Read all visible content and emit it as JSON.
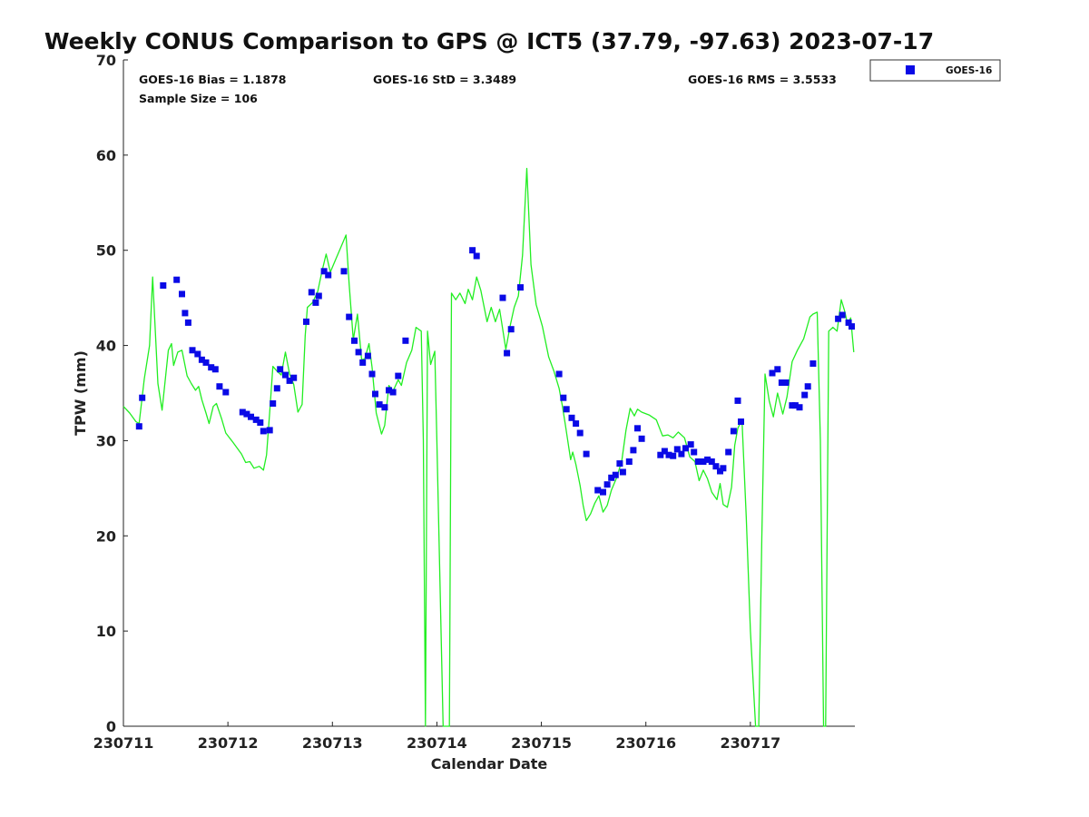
{
  "chart_data": {
    "type": "scatter",
    "title": "Weekly CONUS Comparison to GPS @ ICT5 (37.79, -97.63) 2023-07-17",
    "xlabel": "Calendar Date",
    "ylabel": "TPW (mm)",
    "xlim": [
      230711,
      230718
    ],
    "ylim": [
      0,
      70
    ],
    "x_tick_labels": [
      "230711",
      "230712",
      "230713",
      "230714",
      "230715",
      "230716",
      "230717"
    ],
    "y_tick_labels": [
      "0",
      "10",
      "20",
      "30",
      "40",
      "50",
      "60",
      "70"
    ],
    "grid": false,
    "legend_position": "top-right",
    "stats": {
      "bias": "GOES-16 Bias = 1.1878",
      "std": "GOES-16 StD = 3.3489",
      "rms": "GOES-16 RMS = 3.5533",
      "sample": "Sample Size = 106"
    },
    "colors": {
      "goes": "#0a0ae6",
      "gps": "#22ee22"
    },
    "series": [
      {
        "name": "GOES-16",
        "style": "square-markers",
        "color": "#0a0ae6",
        "points": [
          [
            230711.15,
            31.5
          ],
          [
            230711.18,
            34.5
          ],
          [
            230711.38,
            46.3
          ],
          [
            230711.51,
            46.9
          ],
          [
            230711.56,
            45.4
          ],
          [
            230711.59,
            43.4
          ],
          [
            230711.62,
            42.4
          ],
          [
            230711.66,
            39.5
          ],
          [
            230711.71,
            39.1
          ],
          [
            230711.75,
            38.5
          ],
          [
            230711.79,
            38.2
          ],
          [
            230711.84,
            37.7
          ],
          [
            230711.88,
            37.5
          ],
          [
            230711.92,
            35.7
          ],
          [
            230711.98,
            35.1
          ],
          [
            230712.14,
            33.0
          ],
          [
            230712.18,
            32.8
          ],
          [
            230712.22,
            32.5
          ],
          [
            230712.27,
            32.2
          ],
          [
            230712.31,
            31.9
          ],
          [
            230712.34,
            31.0
          ],
          [
            230712.4,
            31.1
          ],
          [
            230712.43,
            33.9
          ],
          [
            230712.47,
            35.5
          ],
          [
            230712.5,
            37.5
          ],
          [
            230712.55,
            36.9
          ],
          [
            230712.59,
            36.3
          ],
          [
            230712.63,
            36.6
          ],
          [
            230712.75,
            42.5
          ],
          [
            230712.8,
            45.6
          ],
          [
            230712.84,
            44.5
          ],
          [
            230712.87,
            45.2
          ],
          [
            230712.92,
            47.8
          ],
          [
            230712.96,
            47.4
          ],
          [
            230713.11,
            47.8
          ],
          [
            230713.16,
            43.0
          ],
          [
            230713.21,
            40.5
          ],
          [
            230713.25,
            39.3
          ],
          [
            230713.29,
            38.2
          ],
          [
            230713.34,
            38.9
          ],
          [
            230713.38,
            37.0
          ],
          [
            230713.41,
            34.9
          ],
          [
            230713.45,
            33.8
          ],
          [
            230713.5,
            33.5
          ],
          [
            230713.54,
            35.3
          ],
          [
            230713.58,
            35.1
          ],
          [
            230713.63,
            36.8
          ],
          [
            230713.7,
            40.5
          ],
          [
            230714.34,
            50.0
          ],
          [
            230714.38,
            49.4
          ],
          [
            230714.63,
            45.0
          ],
          [
            230714.67,
            39.2
          ],
          [
            230714.71,
            41.7
          ],
          [
            230714.8,
            46.1
          ],
          [
            230715.17,
            37.0
          ],
          [
            230715.21,
            34.5
          ],
          [
            230715.24,
            33.3
          ],
          [
            230715.29,
            32.4
          ],
          [
            230715.33,
            31.8
          ],
          [
            230715.37,
            30.8
          ],
          [
            230715.43,
            28.6
          ],
          [
            230715.54,
            24.8
          ],
          [
            230715.59,
            24.6
          ],
          [
            230715.63,
            25.4
          ],
          [
            230715.67,
            26.1
          ],
          [
            230715.71,
            26.4
          ],
          [
            230715.75,
            27.6
          ],
          [
            230715.78,
            26.7
          ],
          [
            230715.84,
            27.8
          ],
          [
            230715.88,
            29.0
          ],
          [
            230715.92,
            31.3
          ],
          [
            230715.96,
            30.2
          ],
          [
            230716.14,
            28.5
          ],
          [
            230716.18,
            28.9
          ],
          [
            230716.22,
            28.5
          ],
          [
            230716.26,
            28.4
          ],
          [
            230716.3,
            29.1
          ],
          [
            230716.34,
            28.6
          ],
          [
            230716.38,
            29.2
          ],
          [
            230716.43,
            29.6
          ],
          [
            230716.46,
            28.8
          ],
          [
            230716.5,
            27.8
          ],
          [
            230716.55,
            27.8
          ],
          [
            230716.59,
            28.0
          ],
          [
            230716.63,
            27.8
          ],
          [
            230716.67,
            27.3
          ],
          [
            230716.71,
            26.8
          ],
          [
            230716.74,
            27.1
          ],
          [
            230716.79,
            28.8
          ],
          [
            230716.84,
            31.0
          ],
          [
            230716.88,
            34.2
          ],
          [
            230716.91,
            32.0
          ],
          [
            230717.21,
            37.1
          ],
          [
            230717.26,
            37.5
          ],
          [
            230717.3,
            36.1
          ],
          [
            230717.34,
            36.1
          ],
          [
            230717.4,
            33.7
          ],
          [
            230717.43,
            33.7
          ],
          [
            230717.47,
            33.5
          ],
          [
            230717.52,
            34.8
          ],
          [
            230717.55,
            35.7
          ],
          [
            230717.6,
            38.1
          ],
          [
            230717.84,
            42.8
          ],
          [
            230717.88,
            43.2
          ],
          [
            230717.94,
            42.4
          ],
          [
            230717.97,
            42.0
          ]
        ]
      },
      {
        "name": "",
        "style": "line",
        "color": "#22ee22",
        "points": [
          [
            230711.0,
            33.6
          ],
          [
            230711.06,
            32.9
          ],
          [
            230711.12,
            32.0
          ],
          [
            230711.15,
            31.8
          ],
          [
            230711.2,
            36.5
          ],
          [
            230711.25,
            40.0
          ],
          [
            230711.28,
            47.2
          ],
          [
            230711.33,
            36.0
          ],
          [
            230711.37,
            33.2
          ],
          [
            230711.43,
            39.5
          ],
          [
            230711.46,
            40.2
          ],
          [
            230711.48,
            37.9
          ],
          [
            230711.52,
            39.3
          ],
          [
            230711.56,
            39.5
          ],
          [
            230711.61,
            36.8
          ],
          [
            230711.65,
            36.0
          ],
          [
            230711.69,
            35.3
          ],
          [
            230711.72,
            35.7
          ],
          [
            230711.75,
            34.3
          ],
          [
            230711.79,
            32.9
          ],
          [
            230711.82,
            31.8
          ],
          [
            230711.86,
            33.6
          ],
          [
            230711.89,
            33.9
          ],
          [
            230711.94,
            32.3
          ],
          [
            230711.98,
            30.8
          ],
          [
            230712.05,
            29.8
          ],
          [
            230712.13,
            28.6
          ],
          [
            230712.17,
            27.7
          ],
          [
            230712.21,
            27.8
          ],
          [
            230712.25,
            27.1
          ],
          [
            230712.3,
            27.3
          ],
          [
            230712.34,
            26.9
          ],
          [
            230712.37,
            28.5
          ],
          [
            230712.4,
            33.0
          ],
          [
            230712.43,
            37.8
          ],
          [
            230712.47,
            37.3
          ],
          [
            230712.51,
            36.9
          ],
          [
            230712.55,
            39.3
          ],
          [
            230712.59,
            37.0
          ],
          [
            230712.63,
            35.9
          ],
          [
            230712.67,
            33.0
          ],
          [
            230712.71,
            33.8
          ],
          [
            230712.74,
            41.0
          ],
          [
            230712.76,
            44.0
          ],
          [
            230712.81,
            44.5
          ],
          [
            230712.86,
            45.7
          ],
          [
            230712.9,
            47.8
          ],
          [
            230712.94,
            49.6
          ],
          [
            230712.98,
            47.7
          ],
          [
            230713.03,
            49.0
          ],
          [
            230713.08,
            50.3
          ],
          [
            230713.13,
            51.6
          ],
          [
            230713.16,
            46.5
          ],
          [
            230713.2,
            40.6
          ],
          [
            230713.24,
            43.3
          ],
          [
            230713.28,
            38.5
          ],
          [
            230713.31,
            38.6
          ],
          [
            230713.35,
            40.2
          ],
          [
            230713.38,
            37.7
          ],
          [
            230713.42,
            32.9
          ],
          [
            230713.47,
            30.7
          ],
          [
            230713.5,
            31.6
          ],
          [
            230713.54,
            35.8
          ],
          [
            230713.58,
            35.2
          ],
          [
            230713.63,
            36.4
          ],
          [
            230713.66,
            35.8
          ],
          [
            230713.71,
            38.2
          ],
          [
            230713.76,
            39.5
          ],
          [
            230713.8,
            41.9
          ],
          [
            230713.85,
            41.5
          ],
          [
            230713.87,
            30.0
          ],
          [
            230713.89,
            0
          ],
          [
            230713.91,
            41.5
          ],
          [
            230713.94,
            38.0
          ],
          [
            230713.98,
            39.4
          ],
          [
            230714.0,
            30.0
          ],
          [
            230714.06,
            0
          ],
          [
            230714.12,
            0
          ],
          [
            230714.14,
            45.5
          ],
          [
            230714.18,
            44.8
          ],
          [
            230714.22,
            45.5
          ],
          [
            230714.27,
            44.4
          ],
          [
            230714.3,
            45.9
          ],
          [
            230714.34,
            44.8
          ],
          [
            230714.38,
            47.2
          ],
          [
            230714.42,
            45.8
          ],
          [
            230714.48,
            42.5
          ],
          [
            230714.52,
            44.0
          ],
          [
            230714.56,
            42.5
          ],
          [
            230714.6,
            43.8
          ],
          [
            230714.66,
            39.6
          ],
          [
            230714.7,
            42.0
          ],
          [
            230714.74,
            44.0
          ],
          [
            230714.78,
            45.2
          ],
          [
            230714.82,
            49.5
          ],
          [
            230714.86,
            58.6
          ],
          [
            230714.9,
            48.5
          ],
          [
            230714.95,
            44.3
          ],
          [
            230715.01,
            42.0
          ],
          [
            230715.07,
            38.8
          ],
          [
            230715.12,
            37.3
          ],
          [
            230715.17,
            35.5
          ],
          [
            230715.2,
            33.7
          ],
          [
            230715.23,
            31.6
          ],
          [
            230715.28,
            28.0
          ],
          [
            230715.3,
            28.8
          ],
          [
            230715.33,
            27.5
          ],
          [
            230715.37,
            25.3
          ],
          [
            230715.4,
            23.2
          ],
          [
            230715.43,
            21.6
          ],
          [
            230715.47,
            22.3
          ],
          [
            230715.51,
            23.4
          ],
          [
            230715.55,
            24.2
          ],
          [
            230715.59,
            22.5
          ],
          [
            230715.63,
            23.2
          ],
          [
            230715.67,
            24.8
          ],
          [
            230715.72,
            26.1
          ],
          [
            230715.77,
            27.9
          ],
          [
            230715.81,
            31.1
          ],
          [
            230715.85,
            33.4
          ],
          [
            230715.89,
            32.6
          ],
          [
            230715.92,
            33.3
          ],
          [
            230715.96,
            33.0
          ],
          [
            230716.03,
            32.7
          ],
          [
            230716.1,
            32.2
          ],
          [
            230716.16,
            30.5
          ],
          [
            230716.21,
            30.6
          ],
          [
            230716.26,
            30.3
          ],
          [
            230716.31,
            30.9
          ],
          [
            230716.37,
            30.3
          ],
          [
            230716.42,
            28.3
          ],
          [
            230716.47,
            27.8
          ],
          [
            230716.51,
            25.8
          ],
          [
            230716.55,
            26.9
          ],
          [
            230716.59,
            26.0
          ],
          [
            230716.63,
            24.6
          ],
          [
            230716.68,
            23.8
          ],
          [
            230716.71,
            25.5
          ],
          [
            230716.74,
            23.3
          ],
          [
            230716.78,
            23.0
          ],
          [
            230716.82,
            25.1
          ],
          [
            230716.85,
            29.5
          ],
          [
            230716.88,
            31.3
          ],
          [
            230716.92,
            32.2
          ],
          [
            230716.96,
            22.0
          ],
          [
            230717.0,
            10.0
          ],
          [
            230717.05,
            0
          ],
          [
            230717.08,
            0
          ],
          [
            230717.11,
            20.0
          ],
          [
            230717.14,
            37.0
          ],
          [
            230717.18,
            34.2
          ],
          [
            230717.22,
            32.5
          ],
          [
            230717.26,
            35.0
          ],
          [
            230717.31,
            32.8
          ],
          [
            230717.35,
            34.6
          ],
          [
            230717.4,
            38.3
          ],
          [
            230717.45,
            39.5
          ],
          [
            230717.51,
            40.7
          ],
          [
            230717.57,
            43.0
          ],
          [
            230717.6,
            43.3
          ],
          [
            230717.64,
            43.5
          ],
          [
            230717.67,
            30.0
          ],
          [
            230717.7,
            0
          ],
          [
            230717.72,
            0
          ],
          [
            230717.75,
            41.5
          ],
          [
            230717.79,
            41.9
          ],
          [
            230717.83,
            41.5
          ],
          [
            230717.87,
            44.8
          ],
          [
            230717.9,
            43.7
          ],
          [
            230717.93,
            42.3
          ],
          [
            230717.96,
            42.9
          ],
          [
            230717.99,
            39.3
          ]
        ]
      }
    ]
  }
}
